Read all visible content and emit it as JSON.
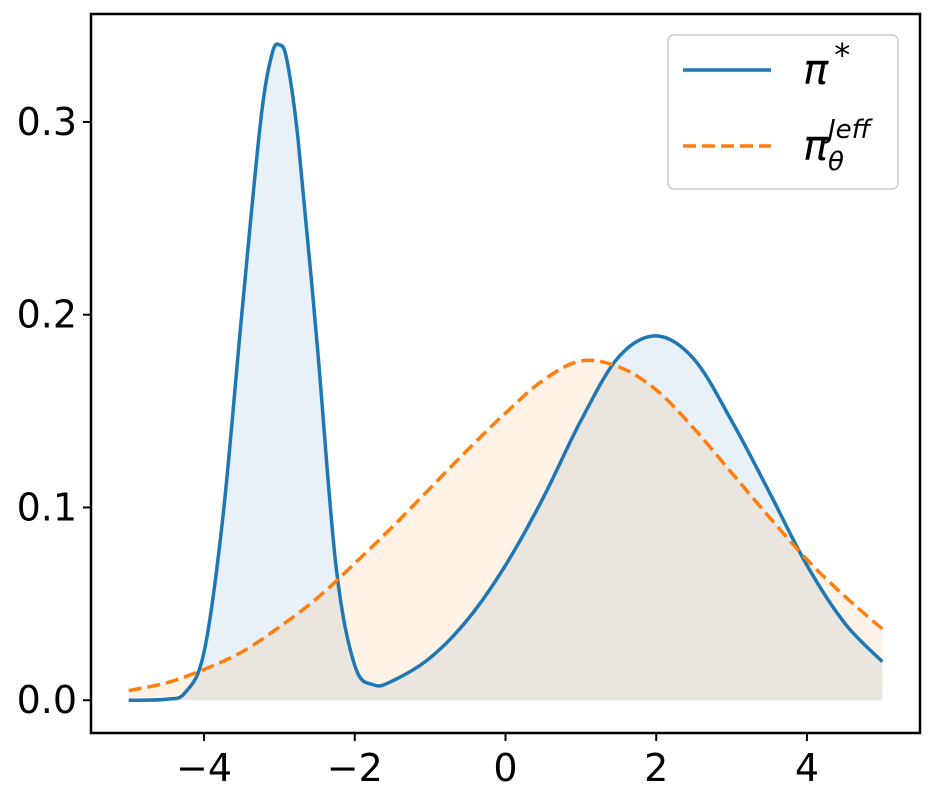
{
  "chart_data": {
    "type": "line",
    "title": "",
    "xlabel": "",
    "ylabel": "",
    "xlim": [
      -5.5,
      5.5
    ],
    "ylim": [
      -0.017,
      0.356
    ],
    "xticks": [
      -4,
      -2,
      0,
      2,
      4
    ],
    "yticks": [
      0.0,
      0.1,
      0.2,
      0.3
    ],
    "xtick_labels": [
      "−4",
      "−2",
      "0",
      "2",
      "4"
    ],
    "ytick_labels": [
      "0.0",
      "0.1",
      "0.2",
      "0.3"
    ],
    "grid": false,
    "legend_position": "top-right",
    "series": [
      {
        "name": "π*",
        "label_base": "π",
        "label_sup": "*",
        "label_sub": "",
        "color": "#1f77b4",
        "line_style": "solid",
        "fill": true,
        "x": [
          -5,
          -4.5,
          -4.25,
          -4,
          -3.75,
          -3.5,
          -3.25,
          -3.1,
          -3,
          -2.9,
          -2.75,
          -2.5,
          -2.25,
          -2,
          -1.75,
          -1.5,
          -1,
          -0.5,
          0,
          0.5,
          1,
          1.5,
          2,
          2.5,
          3,
          3.5,
          4,
          4.5,
          5
        ],
        "values": [
          0.0,
          0.0005,
          0.004,
          0.025,
          0.095,
          0.2,
          0.3,
          0.335,
          0.34,
          0.332,
          0.29,
          0.185,
          0.07,
          0.018,
          0.008,
          0.01,
          0.022,
          0.042,
          0.07,
          0.105,
          0.145,
          0.178,
          0.189,
          0.177,
          0.145,
          0.108,
          0.07,
          0.04,
          0.02
        ]
      },
      {
        "name": "πθJeff",
        "label_base": "π",
        "label_sup": "Jeff",
        "label_sub": "θ",
        "color": "#ff7f0e",
        "line_style": "dashed",
        "fill": true,
        "x": [
          -5,
          -4.5,
          -4,
          -3.5,
          -3,
          -2.5,
          -2,
          -1.5,
          -1,
          -0.5,
          0,
          0.5,
          1,
          1.5,
          2,
          2.5,
          3,
          3.5,
          4,
          4.5,
          5
        ],
        "values": [
          0.005,
          0.009,
          0.016,
          0.025,
          0.038,
          0.053,
          0.071,
          0.09,
          0.11,
          0.13,
          0.149,
          0.166,
          0.176,
          0.173,
          0.161,
          0.141,
          0.118,
          0.095,
          0.073,
          0.054,
          0.037
        ]
      }
    ]
  }
}
